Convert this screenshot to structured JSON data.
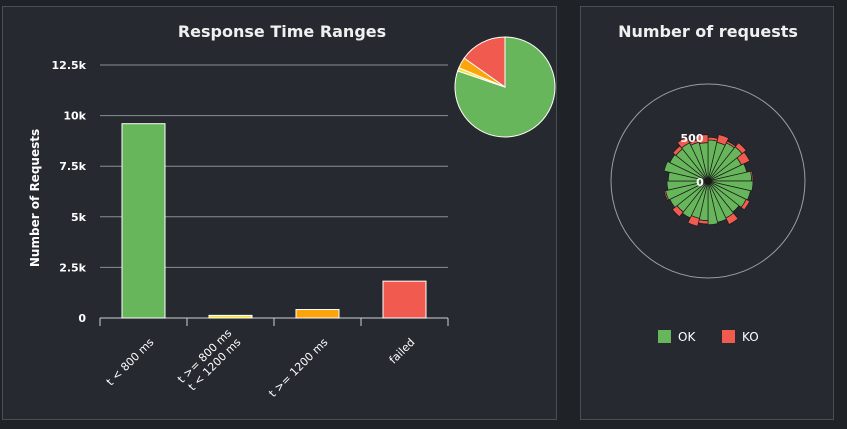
{
  "chart_data": [
    {
      "type": "bar",
      "title": "Response Time Ranges",
      "ylabel": "Number of Requests",
      "xlabel": "",
      "ylim": [
        0,
        12500
      ],
      "yticks": [
        "0",
        "2.5k",
        "5k",
        "7.5k",
        "10k",
        "12.5k"
      ],
      "ytick_values": [
        0,
        2500,
        5000,
        7500,
        10000,
        12500
      ],
      "grid": true,
      "categories": [
        [
          "t < 800 ms"
        ],
        [
          "t >= 800 ms",
          "t < 1200 ms"
        ],
        [
          "t >= 1200 ms"
        ],
        [
          "failed"
        ]
      ],
      "values": [
        9600,
        130,
        420,
        1820
      ],
      "colors": [
        "#68b65c",
        "#f7e33b",
        "#fca40b",
        "#f15b4f"
      ],
      "pie": {
        "values": [
          9600,
          130,
          420,
          1820
        ],
        "colors": [
          "#68b65c",
          "#f7e33b",
          "#fca40b",
          "#f15b4f"
        ]
      }
    },
    {
      "type": "pie",
      "title": "Number of requests",
      "radial_labels": [
        "500",
        "0"
      ],
      "legend": [
        {
          "name": "OK",
          "color": "#68b65c"
        },
        {
          "name": "KO",
          "color": "#f15b4f"
        }
      ],
      "legend_position": "bottom",
      "radial_max": 500,
      "series": [
        {
          "name": "OK",
          "values": [
            310,
            300,
            320,
            330,
            280,
            300,
            330,
            340,
            330,
            320,
            300,
            310,
            320,
            330,
            300,
            290,
            310,
            300,
            320,
            330,
            310,
            300,
            340,
            320,
            310,
            320,
            300,
            290
          ]
        },
        {
          "name": "KO",
          "values": [
            20,
            60,
            15,
            40,
            70,
            0,
            10,
            0,
            0,
            30,
            0,
            55,
            0,
            0,
            25,
            60,
            0,
            45,
            0,
            10,
            0,
            0,
            0,
            0,
            30,
            50,
            20,
            60
          ]
        }
      ]
    }
  ]
}
